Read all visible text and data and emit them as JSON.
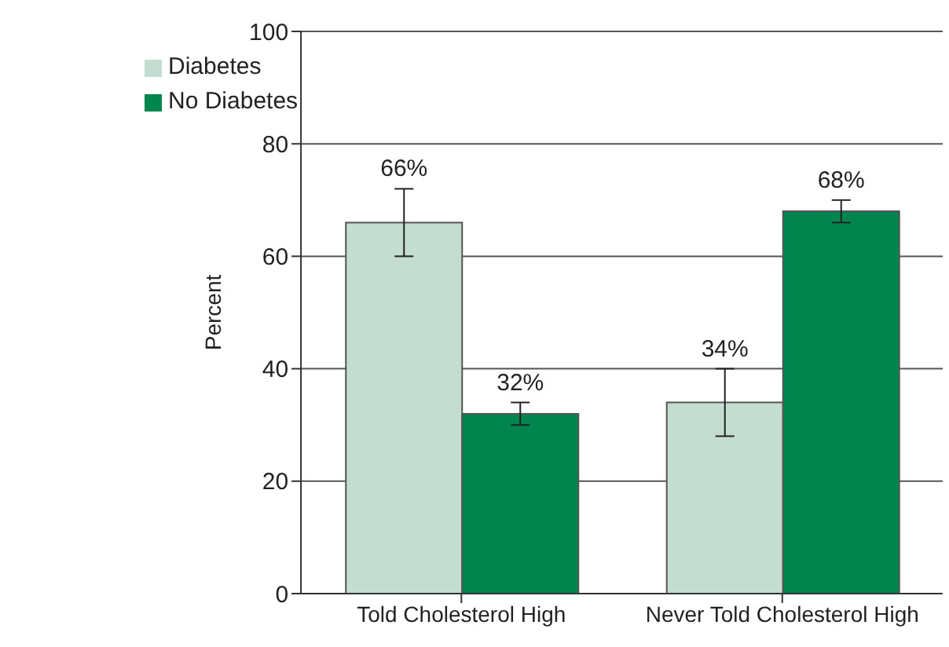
{
  "chart_data": {
    "type": "bar",
    "ylabel": "Percent",
    "categories": [
      "Told Cholesterol High",
      "Never Told Cholesterol High"
    ],
    "series": [
      {
        "name": "Diabetes",
        "color": "#c4ddd1",
        "values": [
          66,
          34
        ],
        "errors": [
          6,
          6
        ],
        "value_labels": [
          "66%",
          "34%"
        ]
      },
      {
        "name": "No Diabetes",
        "color": "#00854f",
        "values": [
          32,
          68
        ],
        "errors": [
          2,
          2
        ],
        "value_labels": [
          "32%",
          "68%"
        ]
      }
    ],
    "ylim": [
      0,
      100
    ],
    "yticks": [
      0,
      20,
      40,
      60,
      80,
      100
    ],
    "grid": "y",
    "legend": "top left"
  }
}
